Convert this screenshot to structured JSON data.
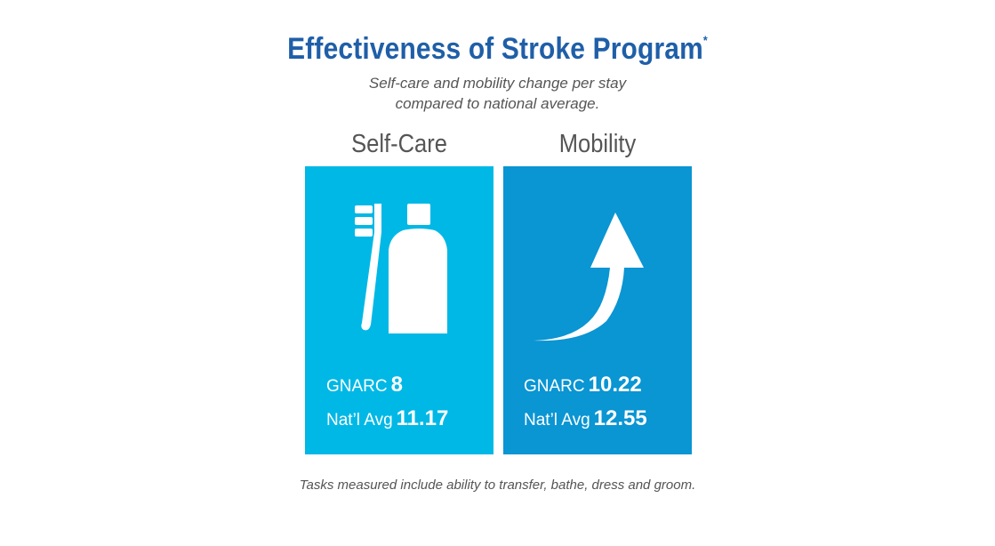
{
  "header": {
    "title": "Effectiveness of Stroke Program",
    "title_mark": "*",
    "subtitle_line1": "Self-care and mobility change per stay",
    "subtitle_line2": "compared to national average."
  },
  "panels": [
    {
      "label": "Self-Care",
      "icon": "toothbrush-toothpaste-icon",
      "color": "#00b8e6",
      "gnarc_label": "GNARC",
      "gnarc_value": "8",
      "natl_label": "Nat’l Avg",
      "natl_value": "11.17"
    },
    {
      "label": "Mobility",
      "icon": "curved-up-arrow-icon",
      "color": "#0a95d3",
      "gnarc_label": "GNARC",
      "gnarc_value": "10.22",
      "natl_label": "Nat’l Avg",
      "natl_value": "12.55"
    }
  ],
  "footnote": "Tasks measured include ability to transfer, bathe, dress and groom.",
  "colors": {
    "title": "#1f5fa8",
    "text_gray": "#555555"
  }
}
